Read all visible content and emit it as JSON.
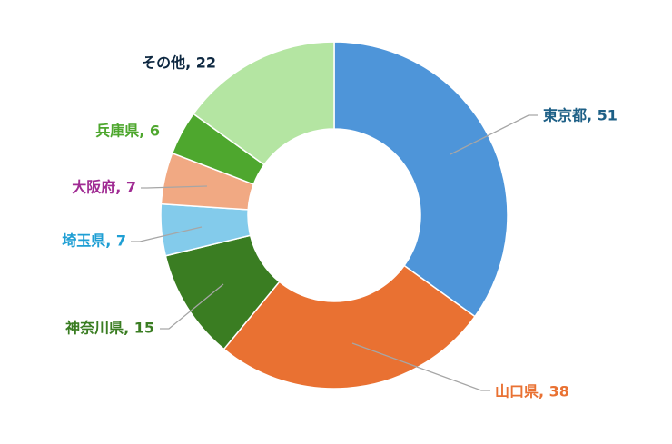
{
  "chart_data": {
    "type": "donut",
    "values": [
      51,
      38,
      15,
      7,
      7,
      6,
      22
    ],
    "value_labels": [
      "東京都, 51",
      "山口県, 38",
      "神奈川県, 15",
      "埼玉県, 7",
      "大阪府, 7",
      "兵庫県, 6",
      "その他, 22"
    ],
    "colors": [
      "#4e95d9",
      "#e97132",
      "#3a7d22",
      "#83cbeb",
      "#f1a983",
      "#4ea72e",
      "#b4e5a2"
    ],
    "label_colors": [
      "#1d5f86",
      "#e97132",
      "#3a7d22",
      "#1f9fd4",
      "#a02b93",
      "#4ea72e",
      "#0e2841"
    ]
  }
}
